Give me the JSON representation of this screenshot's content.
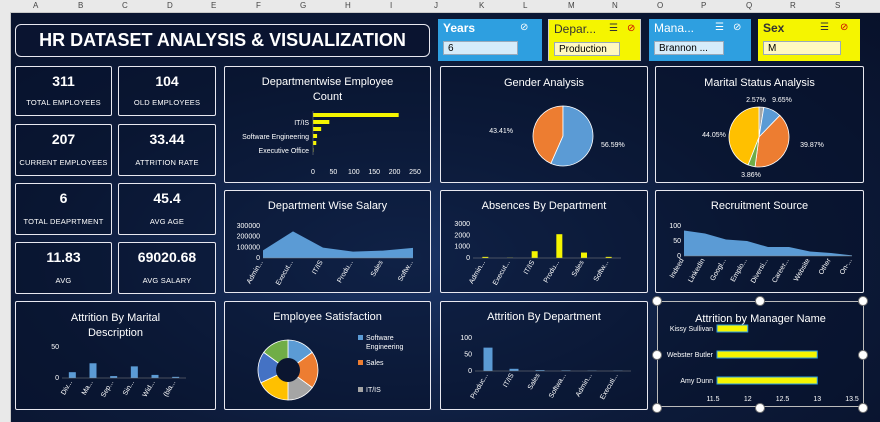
{
  "columns": [
    "A",
    "B",
    "C",
    "D",
    "E",
    "F",
    "G",
    "H",
    "I",
    "J",
    "K",
    "L",
    "M",
    "N",
    "O",
    "P",
    "Q",
    "R",
    "S"
  ],
  "title": "HR DATASET ANALYSIS & VISUALIZATION",
  "slicers": [
    {
      "label": "Years",
      "value": "6"
    },
    {
      "label": "Depar...",
      "value": "Production"
    },
    {
      "label": "Mana...",
      "value": "Brannon ..."
    },
    {
      "label": "Sex",
      "value": "M"
    }
  ],
  "kpis": [
    {
      "value": "311",
      "label": "TOTAL EMPLOYEES"
    },
    {
      "value": "104",
      "label": "OLD EMPLOYEES"
    },
    {
      "value": "207",
      "label": "CURRENT EMPLOYEES"
    },
    {
      "value": "33.44",
      "label": "ATTRITION RATE"
    },
    {
      "value": "6",
      "label": "TOTAL DEAPRTMENT"
    },
    {
      "value": "45.4",
      "label": "AVG AGE"
    },
    {
      "value": "11.83",
      "label": "AVG"
    },
    {
      "value": "69020.68",
      "label": "AVG SALARY"
    }
  ],
  "colors": {
    "yellow": "#f5f500",
    "blue": "#5b9bd5",
    "orange": "#ed7d31",
    "gray": "#a5a5a5",
    "gold": "#ffc000",
    "green": "#70ad47"
  },
  "chart_data": [
    {
      "id": "dept-count",
      "type": "bar",
      "title": "Departmentwise Employee Count",
      "categories": [
        "Executive Office",
        "",
        "Software Engineering",
        "",
        "IT/IS",
        ""
      ],
      "values": [
        1,
        8,
        10,
        20,
        40,
        210
      ],
      "xticks": [
        "0",
        "50",
        "100",
        "150",
        "200",
        "250"
      ],
      "xlim": [
        0,
        250
      ]
    },
    {
      "id": "gender",
      "type": "pie",
      "title": "Gender Analysis",
      "labels": [
        "43.41%",
        "56.59%"
      ],
      "values": [
        43.41,
        56.59
      ]
    },
    {
      "id": "marital",
      "type": "pie",
      "title": "Marital Status Analysis",
      "labels": [
        "2.57%",
        "9.65%",
        "39.87%",
        "3.86%",
        "44.05%"
      ],
      "values": [
        2.57,
        9.65,
        39.87,
        3.86,
        44.05
      ]
    },
    {
      "id": "dept-salary",
      "type": "area",
      "title": "Department Wise Salary",
      "categories": [
        "Admin...",
        "Execut...",
        "IT/IS",
        "Produ...",
        "Sales",
        "Softw..."
      ],
      "values": [
        71000,
        250000,
        97000,
        60000,
        69000,
        95000
      ],
      "yticks": [
        "0",
        "100000",
        "200000",
        "300000"
      ],
      "ylim": [
        0,
        300000
      ]
    },
    {
      "id": "absences",
      "type": "bar",
      "title": "Absences By Department",
      "categories": [
        "Admin...",
        "Execut...",
        "IT/IS",
        "Produ...",
        "Sales",
        "Softw..."
      ],
      "values": [
        100,
        20,
        600,
        2100,
        480,
        100
      ],
      "yticks": [
        "0",
        "1000",
        "2000",
        "3000"
      ],
      "ylim": [
        0,
        3000
      ]
    },
    {
      "id": "recruit",
      "type": "area",
      "title": "Recruitment Source",
      "categories": [
        "Indeed",
        "LinkedIn",
        "Googl...",
        "Emplo...",
        "Diversi...",
        "Career...",
        "Website",
        "Other",
        "On-..."
      ],
      "values": [
        85,
        75,
        55,
        50,
        30,
        30,
        15,
        10,
        2
      ],
      "yticks": [
        "0",
        "50",
        "100"
      ],
      "ylim": [
        0,
        100
      ]
    },
    {
      "id": "attr-marital",
      "type": "bar",
      "title": "Attrition By Marital Description",
      "categories": [
        "Div...",
        "Ma...",
        "Sep...",
        "Sin...",
        "Wid...",
        "(bla..."
      ],
      "values": [
        15,
        38,
        5,
        30,
        8,
        3
      ],
      "yticks": [
        "0",
        "50"
      ],
      "ylim": [
        0,
        80
      ]
    },
    {
      "id": "satisfaction",
      "type": "pie",
      "title": "Employee Satisfaction",
      "legend": [
        "Software Engineering",
        "Sales",
        "IT/IS"
      ],
      "values": [
        15,
        20,
        15,
        18,
        17,
        15
      ]
    },
    {
      "id": "attr-dept",
      "type": "bar",
      "title": "Attrition By Department",
      "categories": [
        "Produc...",
        "IT/IS",
        "Sales",
        "Softwa...",
        "Admin...",
        "Executi..."
      ],
      "values": [
        85,
        8,
        3,
        2,
        1,
        1
      ],
      "yticks": [
        "0",
        "50",
        "100"
      ],
      "ylim": [
        0,
        120
      ]
    },
    {
      "id": "attr-manager",
      "type": "bar",
      "title": "Attrition by Manager Name",
      "categories": [
        "Kissy Sullivan",
        "Webster Butler",
        "Amy Dunn"
      ],
      "values": [
        12,
        13,
        13
      ],
      "xticks": [
        "11.5",
        "12",
        "12.5",
        "13",
        "13.5"
      ],
      "xlim": [
        11.5,
        13.5
      ]
    }
  ]
}
